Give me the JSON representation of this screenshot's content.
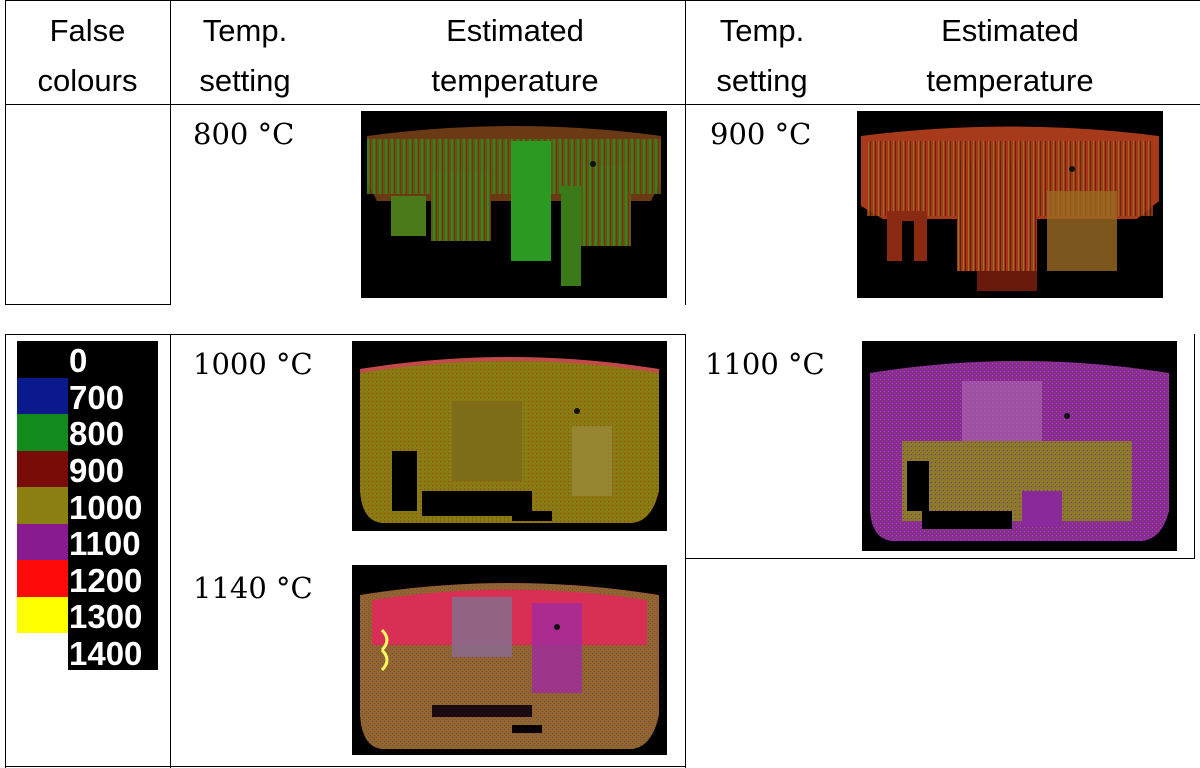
{
  "headers": {
    "false_colours": "False\ncolours",
    "temp_setting_1": "Temp.\nsetting",
    "estimated_temp_1": "Estimated\ntemperature",
    "temp_setting_2": "Temp.\nsetting",
    "estimated_temp_2": "Estimated\ntemperature"
  },
  "settings": {
    "s800": "800 °C",
    "s900": "900 °C",
    "s1000": "1000 °C",
    "s1100": "1100 °C",
    "s1140": "1140 °C"
  },
  "legend": [
    {
      "value": "0",
      "color": "#000000"
    },
    {
      "value": "700",
      "color": "#0a1a8c"
    },
    {
      "value": "800",
      "color": "#138a1c"
    },
    {
      "value": "900",
      "color": "#7a0c08"
    },
    {
      "value": "1000",
      "color": "#8a7f10"
    },
    {
      "value": "1100",
      "color": "#8a1a90"
    },
    {
      "value": "1200",
      "color": "#ff0a0a"
    },
    {
      "value": "1300",
      "color": "#ffff00"
    },
    {
      "value": "1400",
      "color": "#ffffff"
    }
  ]
}
